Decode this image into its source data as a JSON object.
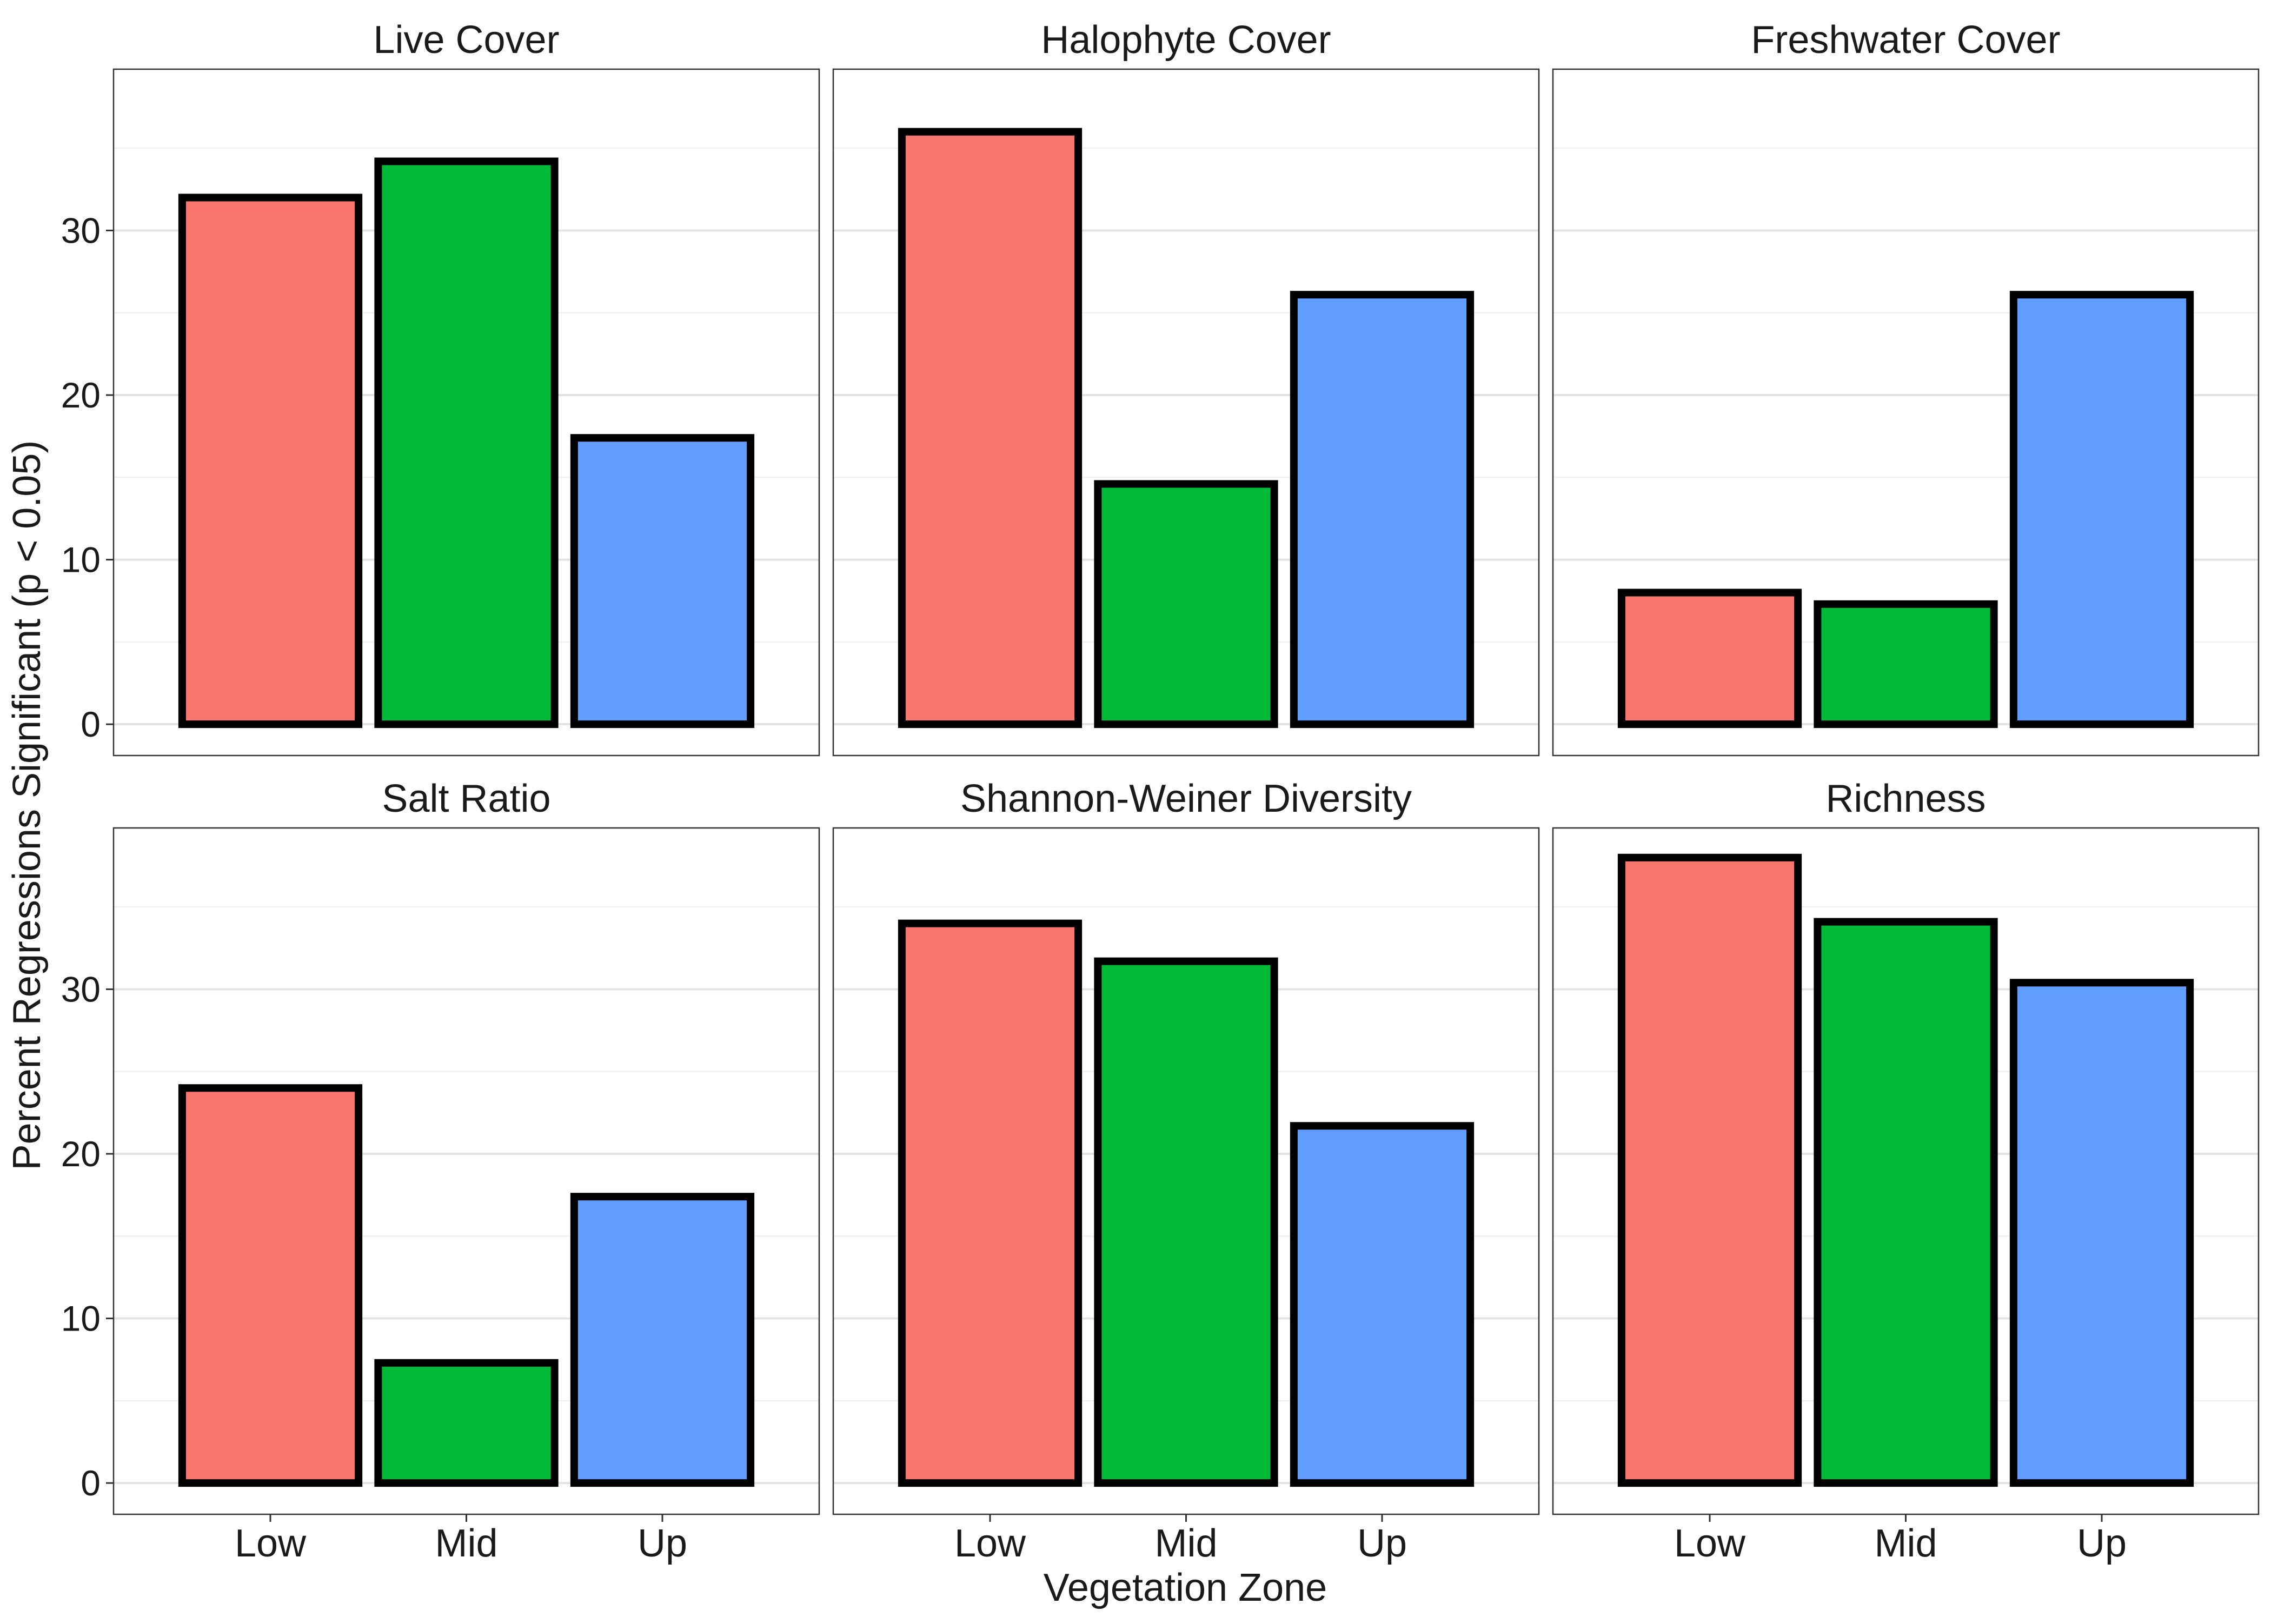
{
  "chart_data": {
    "type": "bar",
    "facet_layout": "3 columns x 2 rows",
    "xlabel": "Vegetation Zone",
    "ylabel": "Percent Regressions Significant (p < 0.05)",
    "categories": [
      "Low",
      "Mid",
      "Up"
    ],
    "ylim": [
      0,
      38
    ],
    "yticks": [
      0,
      10,
      20,
      30
    ],
    "grid": true,
    "colors": {
      "Low": "#F8766D",
      "Mid": "#00BA38",
      "Up": "#619CFF"
    },
    "panels": [
      {
        "title": "Live Cover",
        "values": [
          32.0,
          34.2,
          17.4
        ]
      },
      {
        "title": "Halophyte Cover",
        "values": [
          36.0,
          14.6,
          26.1
        ]
      },
      {
        "title": "Freshwater Cover",
        "values": [
          8.0,
          7.3,
          26.1
        ]
      },
      {
        "title": "Salt Ratio",
        "values": [
          24.0,
          7.3,
          17.4
        ]
      },
      {
        "title": "Shannon-Weiner Diversity",
        "values": [
          34.0,
          31.7,
          21.7
        ]
      },
      {
        "title": "Richness",
        "values": [
          38.0,
          34.1,
          30.4
        ]
      }
    ]
  }
}
